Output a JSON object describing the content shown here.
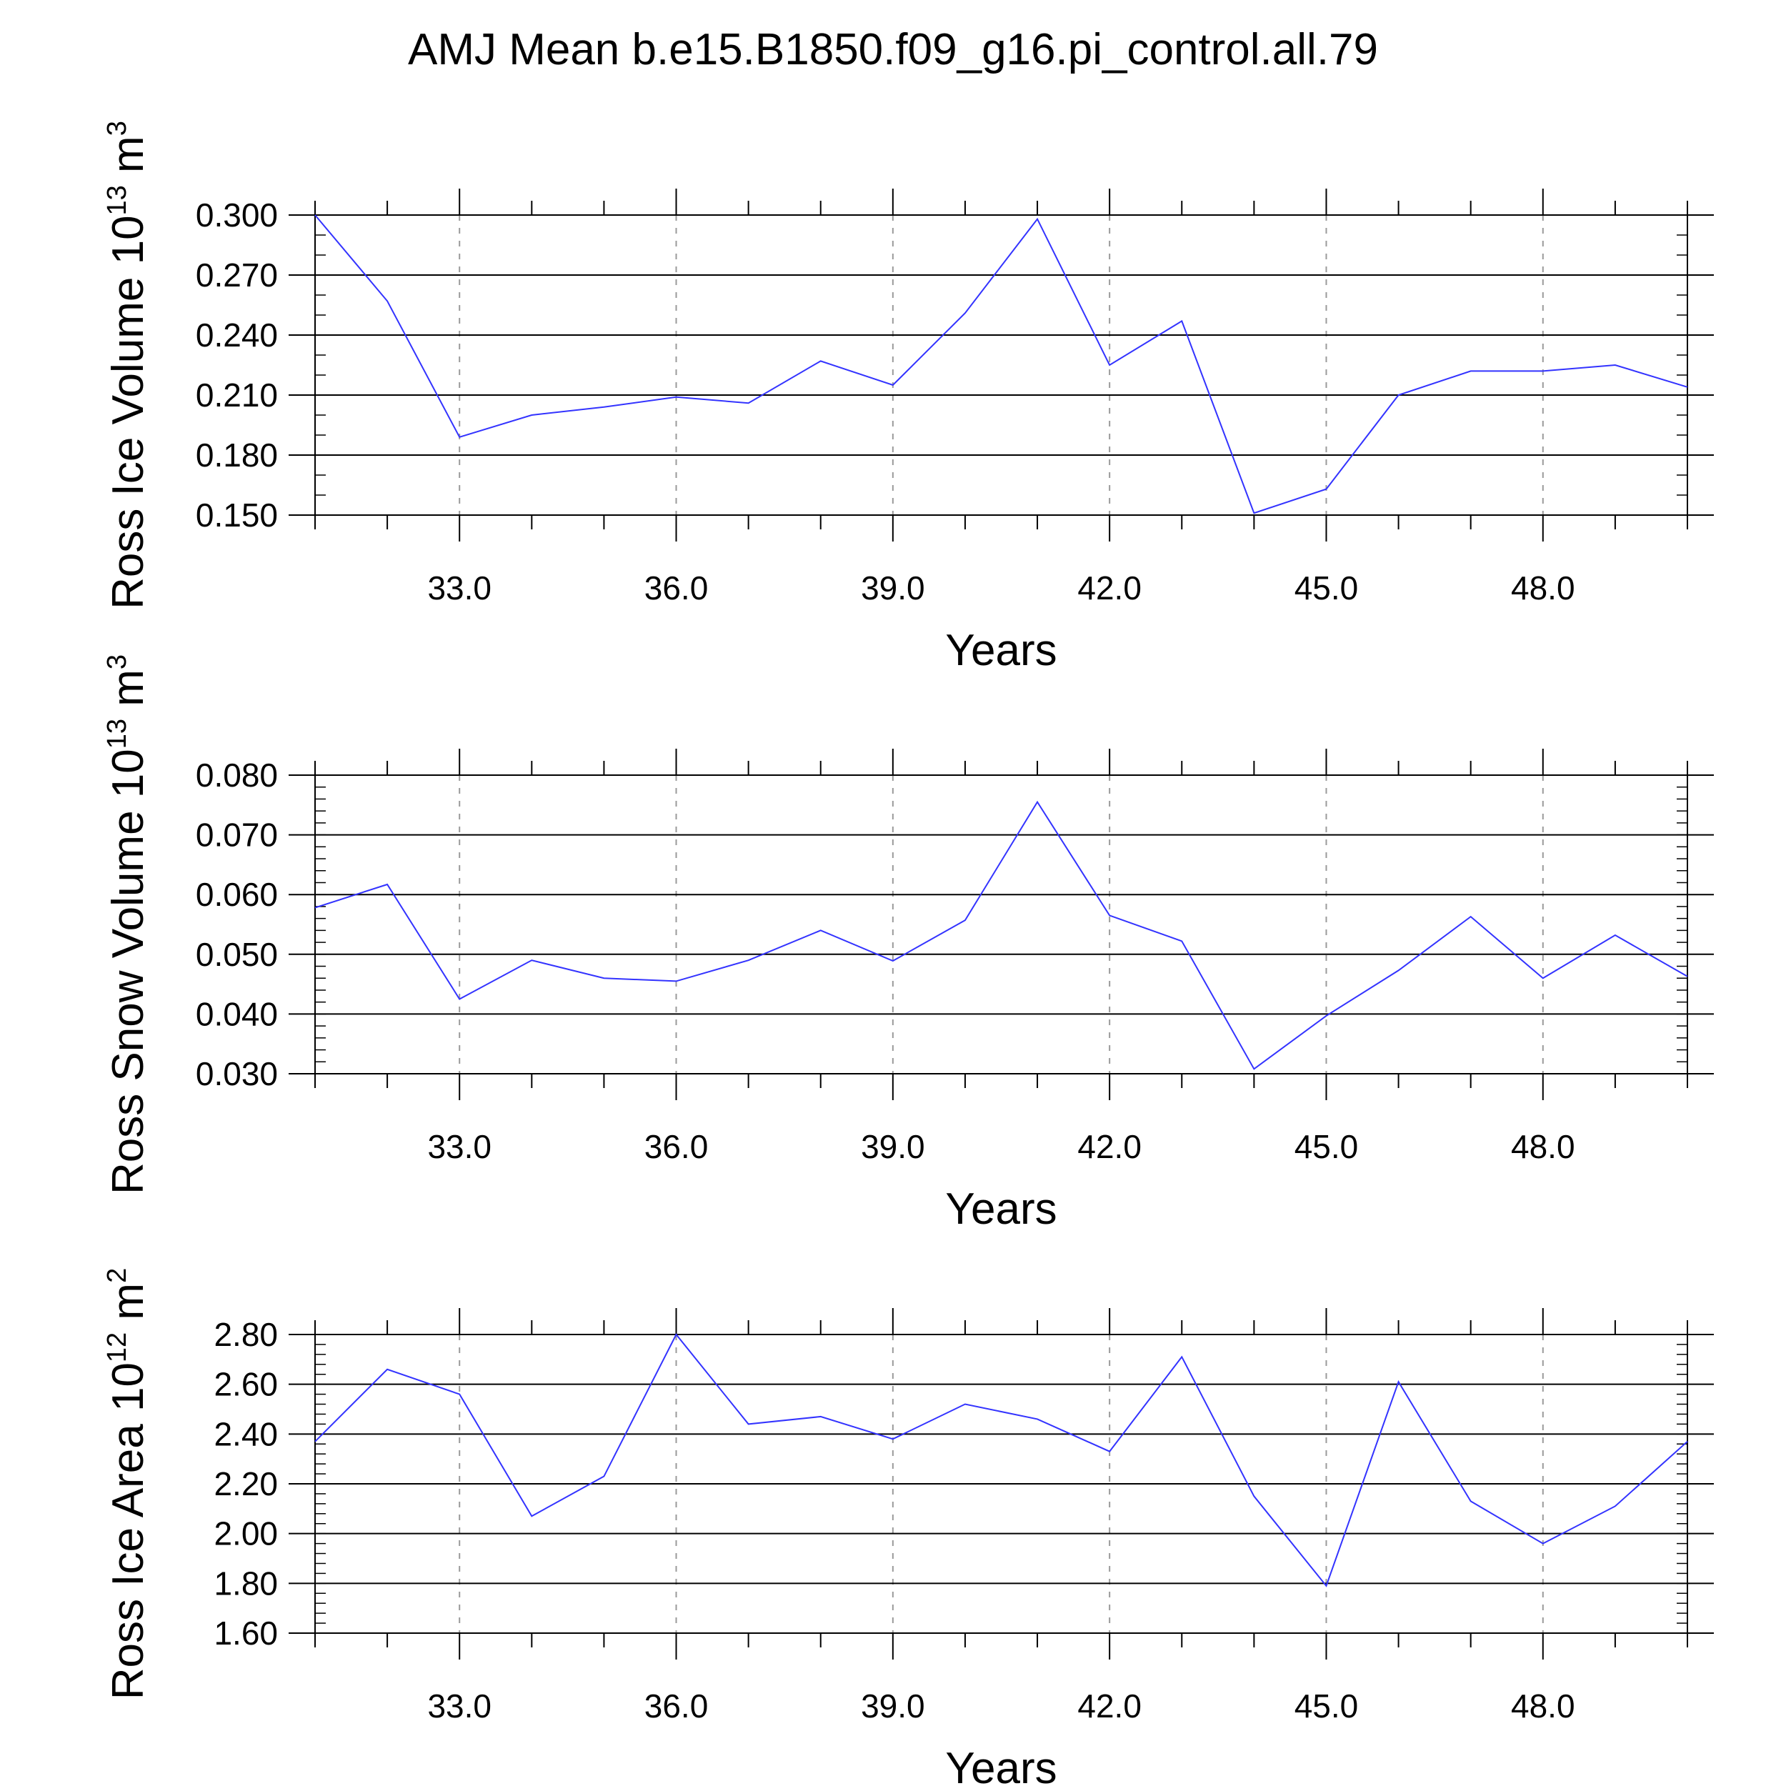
{
  "chart_data": {
    "title": "AMJ Mean b.e15.B1850.f09_g16.pi_control.all.79",
    "panels": [
      {
        "type": "line",
        "ylabel": {
          "text": "Ross Ice Volume 10",
          "sup1": "13",
          "mid": " m",
          "sup2": "3"
        },
        "xlabel": "Years",
        "xlim": [
          31,
          50
        ],
        "ylim": [
          0.15,
          0.3
        ],
        "yticks": [
          0.15,
          0.18,
          0.21,
          0.24,
          0.27,
          0.3
        ],
        "ytick_labels": [
          "0.150",
          "0.180",
          "0.210",
          "0.240",
          "0.270",
          "0.300"
        ],
        "yminor_step": 0.01,
        "xticks": [
          33,
          36,
          39,
          42,
          45,
          48
        ],
        "xtick_labels": [
          "33.0",
          "36.0",
          "39.0",
          "42.0",
          "45.0",
          "48.0"
        ],
        "x": [
          31,
          32,
          33,
          34,
          35,
          36,
          37,
          38,
          39,
          40,
          41,
          42,
          43,
          44,
          45,
          46,
          47,
          48,
          49,
          50
        ],
        "series": [
          {
            "name": "Ross Ice Volume",
            "color": "#3333ff",
            "values": [
              0.3,
              0.257,
              0.189,
              0.2,
              0.204,
              0.209,
              0.206,
              0.227,
              0.215,
              0.251,
              0.298,
              0.225,
              0.247,
              0.151,
              0.163,
              0.21,
              0.222,
              0.222,
              0.225,
              0.214
            ]
          }
        ]
      },
      {
        "type": "line",
        "ylabel": {
          "text": "Ross Snow Volume 10",
          "sup1": "13",
          "mid": " m",
          "sup2": "3"
        },
        "xlabel": "Years",
        "xlim": [
          31,
          50
        ],
        "ylim": [
          0.03,
          0.08
        ],
        "yticks": [
          0.03,
          0.04,
          0.05,
          0.06,
          0.07,
          0.08
        ],
        "ytick_labels": [
          "0.030",
          "0.040",
          "0.050",
          "0.060",
          "0.070",
          "0.080"
        ],
        "yminor_step": 0.002,
        "xticks": [
          33,
          36,
          39,
          42,
          45,
          48
        ],
        "xtick_labels": [
          "33.0",
          "36.0",
          "39.0",
          "42.0",
          "45.0",
          "48.0"
        ],
        "x": [
          31,
          32,
          33,
          34,
          35,
          36,
          37,
          38,
          39,
          40,
          41,
          42,
          43,
          44,
          45,
          46,
          47,
          48,
          49,
          50
        ],
        "series": [
          {
            "name": "Ross Snow Volume",
            "color": "#3333ff",
            "values": [
              0.0578,
              0.0617,
              0.0425,
              0.049,
              0.046,
              0.0455,
              0.049,
              0.054,
              0.0489,
              0.0557,
              0.0755,
              0.0565,
              0.0522,
              0.0308,
              0.0397,
              0.0473,
              0.0563,
              0.046,
              0.0532,
              0.0463
            ]
          }
        ]
      },
      {
        "type": "line",
        "ylabel": {
          "text": "Ross Ice Area 10",
          "sup1": "12",
          "mid": " m",
          "sup2": "2"
        },
        "xlabel": "Years",
        "xlim": [
          31,
          50
        ],
        "ylim": [
          1.6,
          2.8
        ],
        "yticks": [
          1.6,
          1.8,
          2.0,
          2.2,
          2.4,
          2.6,
          2.8
        ],
        "ytick_labels": [
          "1.60",
          "1.80",
          "2.00",
          "2.20",
          "2.40",
          "2.60",
          "2.80"
        ],
        "yminor_step": 0.04,
        "xticks": [
          33,
          36,
          39,
          42,
          45,
          48
        ],
        "xtick_labels": [
          "33.0",
          "36.0",
          "39.0",
          "42.0",
          "45.0",
          "48.0"
        ],
        "x": [
          31,
          32,
          33,
          34,
          35,
          36,
          37,
          38,
          39,
          40,
          41,
          42,
          43,
          44,
          45,
          46,
          47,
          48,
          49,
          50
        ],
        "series": [
          {
            "name": "Ross Ice Area",
            "color": "#3333ff",
            "values": [
              2.37,
              2.66,
              2.56,
              2.07,
              2.23,
              2.8,
              2.44,
              2.47,
              2.38,
              2.52,
              2.46,
              2.33,
              2.71,
              2.15,
              1.79,
              2.61,
              2.13,
              1.96,
              2.11,
              2.37
            ]
          }
        ]
      }
    ]
  }
}
